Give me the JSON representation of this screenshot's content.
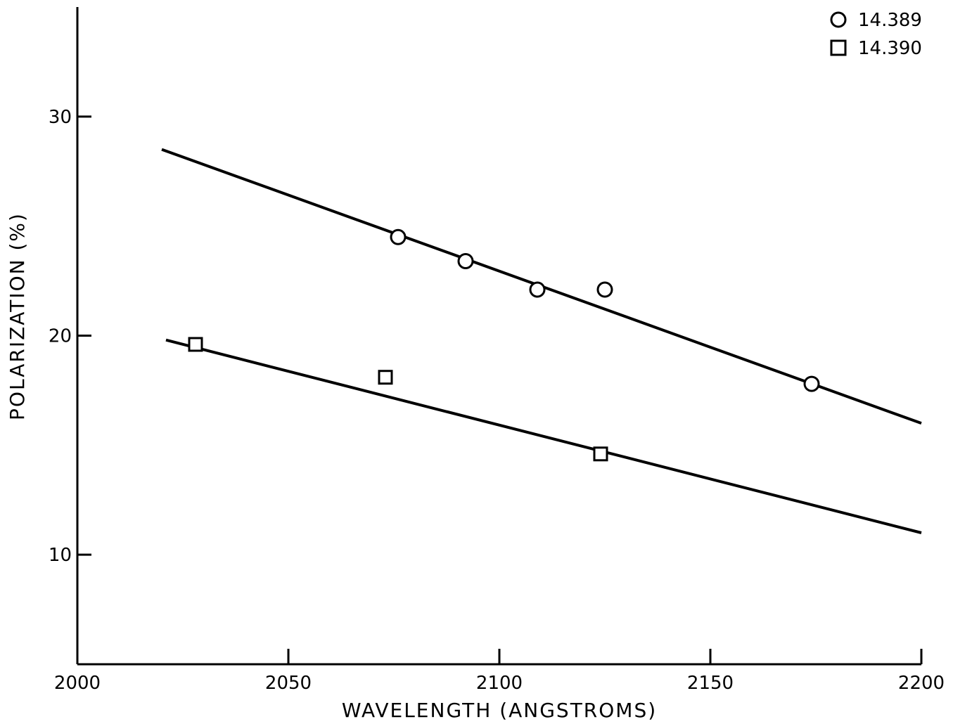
{
  "chart_data": {
    "type": "scatter",
    "title": "",
    "xlabel": "WAVELENGTH (ANGSTROMS)",
    "ylabel": "POLARIZATION (%)",
    "xlim": [
      2000,
      2200
    ],
    "ylim": [
      5,
      35
    ],
    "xticks": [
      2000,
      2050,
      2100,
      2150,
      2200
    ],
    "yticks": [
      10,
      20,
      30
    ],
    "grid": false,
    "legend_position": "top-right",
    "series": [
      {
        "name": "14.389",
        "marker": "circle",
        "points": [
          {
            "x": 2076,
            "y": 24.5
          },
          {
            "x": 2092,
            "y": 23.4
          },
          {
            "x": 2109,
            "y": 22.1
          },
          {
            "x": 2125,
            "y": 22.1
          },
          {
            "x": 2174,
            "y": 17.8
          }
        ],
        "fit_line": [
          {
            "x": 2020,
            "y": 28.5
          },
          {
            "x": 2200,
            "y": 16.0
          }
        ]
      },
      {
        "name": "14.390",
        "marker": "square",
        "points": [
          {
            "x": 2028,
            "y": 19.6
          },
          {
            "x": 2073,
            "y": 18.1
          },
          {
            "x": 2124,
            "y": 14.6
          }
        ],
        "fit_line": [
          {
            "x": 2021,
            "y": 19.8
          },
          {
            "x": 2200,
            "y": 11.0
          }
        ]
      }
    ]
  }
}
